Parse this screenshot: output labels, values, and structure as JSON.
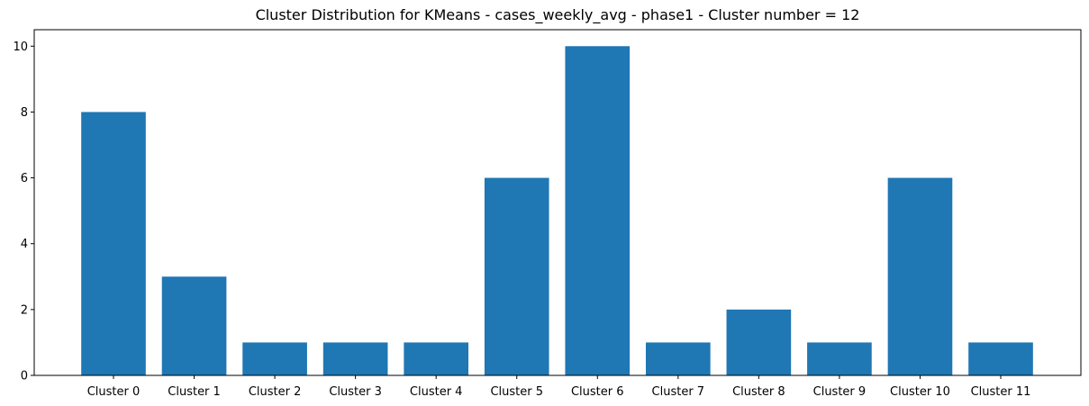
{
  "chart_data": {
    "type": "bar",
    "title": "Cluster Distribution for KMeans - cases_weekly_avg - phase1 - Cluster number = 12",
    "xlabel": "",
    "ylabel": "",
    "categories": [
      "Cluster 0",
      "Cluster 1",
      "Cluster 2",
      "Cluster 3",
      "Cluster 4",
      "Cluster 5",
      "Cluster 6",
      "Cluster 7",
      "Cluster 8",
      "Cluster 9",
      "Cluster 10",
      "Cluster 11"
    ],
    "values": [
      8,
      3,
      1,
      1,
      1,
      6,
      10,
      1,
      2,
      1,
      6,
      1
    ],
    "ylim": [
      0,
      10.5
    ],
    "yticks": [
      0,
      2,
      4,
      6,
      8,
      10
    ],
    "grid": false,
    "bar_color": "#1f77b4"
  }
}
